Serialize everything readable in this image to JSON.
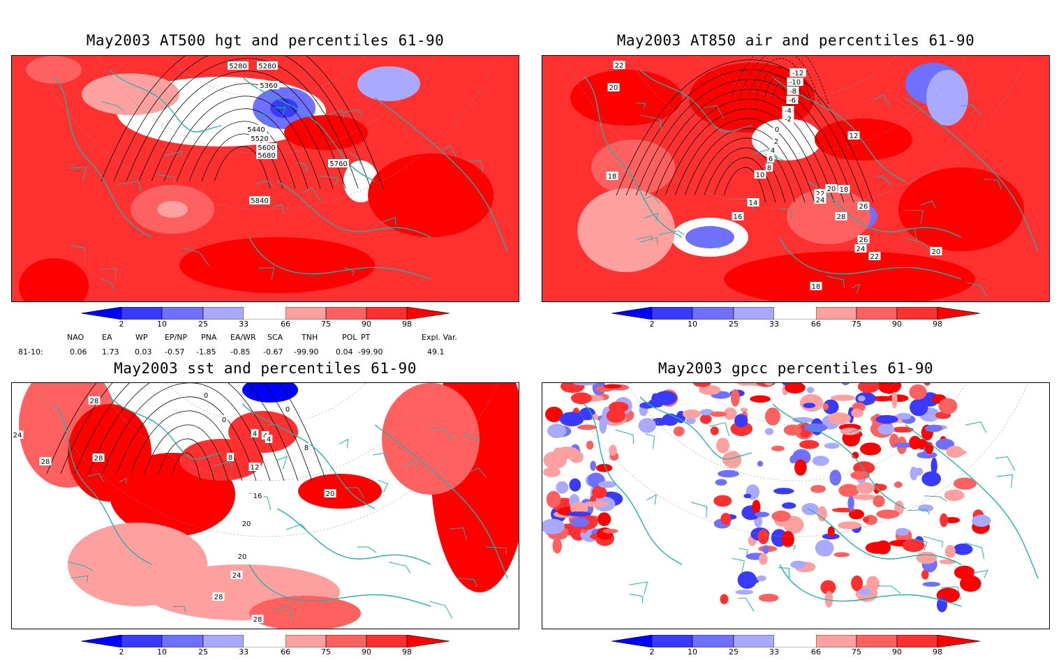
{
  "panels": [
    {
      "title": "May2003 AT500 hgt and percentiles 61-90",
      "contour_labels": [
        "5280",
        "5280",
        "5360",
        "5440",
        "5520",
        "5600",
        "5680",
        "5760",
        "5840"
      ]
    },
    {
      "title": "May2003 AT850 air and percentiles 61-90",
      "contour_labels": [
        "22",
        "20",
        "18",
        "-12",
        "-10",
        "-8",
        "-6",
        "-4",
        "-2",
        "0",
        "2",
        "4",
        "6",
        "8",
        "10",
        "12",
        "14",
        "16",
        "18",
        "20",
        "22",
        "24",
        "26",
        "28",
        "26",
        "24",
        "22",
        "18",
        "20"
      ]
    },
    {
      "title": "May2003 sst and percentiles 61-90",
      "contour_labels": [
        "28",
        "24",
        "28",
        "28",
        "0",
        "0",
        "0",
        "4",
        "4",
        "8",
        "4",
        "8",
        "12",
        "16",
        "20",
        "20",
        "20",
        "24",
        "28",
        "28"
      ]
    },
    {
      "title": "May2003 gpcc percentiles 61-90",
      "contour_labels": []
    }
  ],
  "colorbar": {
    "ticks": [
      "2",
      "10",
      "25",
      "33",
      "66",
      "75",
      "90",
      "98"
    ],
    "colors": {
      "below_2": "#0000ff",
      "b2_10": "#3a3aff",
      "b10_25": "#7070ff",
      "b25_33": "#a9a9ff",
      "mid": "#ffffff",
      "a66_75": "#ffa0a0",
      "a75_90": "#ff6060",
      "a90_98": "#ff3030",
      "above_98": "#ff0000"
    }
  },
  "indices": {
    "headers": [
      "NAO",
      "EA",
      "WP",
      "EP/NP",
      "PNA",
      "EA/WR",
      "SCA",
      "TNH",
      "POL",
      "PT",
      "Expl. Var."
    ],
    "row_label": "81-10:",
    "values": [
      "0.06",
      "1.73",
      "0.03",
      "-0.57",
      "-1.85",
      "-0.85",
      "-0.67",
      "-99.90",
      "0.04",
      "-99.90",
      "49.1"
    ]
  },
  "colors": {
    "coast": "#20b2aa",
    "contour": "#000000"
  }
}
